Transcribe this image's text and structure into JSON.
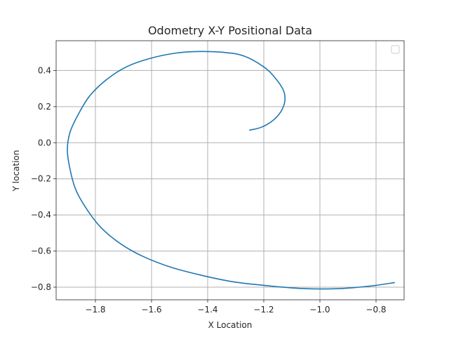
{
  "chart_data": {
    "type": "line",
    "title": "Odometry X-Y Positional Data",
    "xlabel": "X Location",
    "ylabel": "Y location",
    "xlim": [
      -1.94,
      -0.7
    ],
    "ylim": [
      -0.87,
      0.565
    ],
    "xticks": [
      -1.8,
      -1.6,
      -1.4,
      -1.2,
      -1.0,
      -0.8
    ],
    "xtick_labels": [
      "−1.8",
      "−1.6",
      "−1.4",
      "−1.2",
      "−1.0",
      "−0.8"
    ],
    "yticks": [
      -0.8,
      -0.6,
      -0.4,
      -0.2,
      0.0,
      0.2,
      0.4
    ],
    "ytick_labels": [
      "−0.8",
      "−0.6",
      "−0.4",
      "−0.2",
      "0.0",
      "0.2",
      "0.4"
    ],
    "grid": true,
    "legend": {
      "placement": "top-right",
      "entries": []
    },
    "line_color": "#1f77b4",
    "series": [
      {
        "x": [
          -1.25,
          -1.21,
          -1.17,
          -1.14,
          -1.125,
          -1.13,
          -1.16,
          -1.2,
          -1.27,
          -1.34,
          -1.44,
          -1.52,
          -1.61,
          -1.69,
          -1.76,
          -1.82,
          -1.86,
          -1.89,
          -1.9,
          -1.89,
          -1.87,
          -1.83,
          -1.78,
          -1.71,
          -1.63,
          -1.53,
          -1.42,
          -1.31,
          -1.2,
          -1.09,
          -1.0,
          -0.93,
          -0.86,
          -0.8,
          -0.735
        ],
        "y": [
          0.07,
          0.085,
          0.12,
          0.17,
          0.23,
          0.29,
          0.36,
          0.42,
          0.48,
          0.5,
          0.505,
          0.495,
          0.465,
          0.42,
          0.35,
          0.26,
          0.16,
          0.06,
          -0.04,
          -0.15,
          -0.26,
          -0.37,
          -0.47,
          -0.56,
          -0.63,
          -0.69,
          -0.735,
          -0.77,
          -0.79,
          -0.805,
          -0.81,
          -0.808,
          -0.8,
          -0.79,
          -0.775
        ]
      }
    ]
  }
}
